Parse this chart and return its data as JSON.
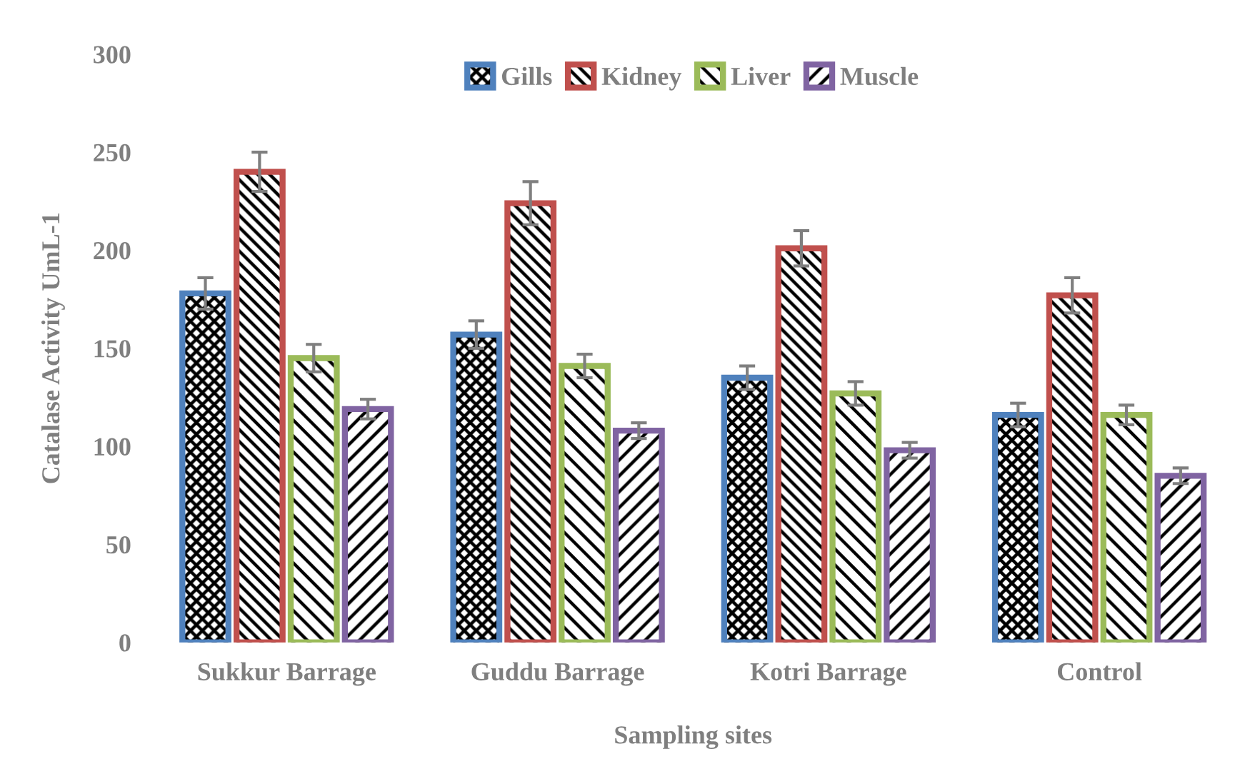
{
  "chart_data": {
    "type": "bar",
    "xlabel": "Sampling sites",
    "ylabel": "Catalase Activity UmL-1",
    "categories": [
      "Sukkur Barrage",
      "Guddu Barrage",
      "Kotri Barrage",
      "Control"
    ],
    "series": [
      {
        "name": "Gills",
        "color": "#4f81bd",
        "values": [
          178,
          157,
          135,
          116
        ],
        "errors": [
          8,
          7,
          6,
          6
        ]
      },
      {
        "name": "Kidney",
        "color": "#c0504d",
        "values": [
          240,
          224,
          201,
          177
        ],
        "errors": [
          10,
          11,
          9,
          9
        ]
      },
      {
        "name": "Liver",
        "color": "#9bbb59",
        "values": [
          145,
          141,
          127,
          116
        ],
        "errors": [
          7,
          6,
          6,
          5
        ]
      },
      {
        "name": "Muscle",
        "color": "#8064a2",
        "values": [
          119,
          108,
          98,
          85
        ],
        "errors": [
          5,
          4,
          4,
          4
        ]
      }
    ],
    "ylim": [
      0,
      300
    ],
    "yticks": [
      0,
      50,
      100,
      150,
      200,
      250,
      300
    ],
    "grid": false,
    "legend": "top"
  }
}
